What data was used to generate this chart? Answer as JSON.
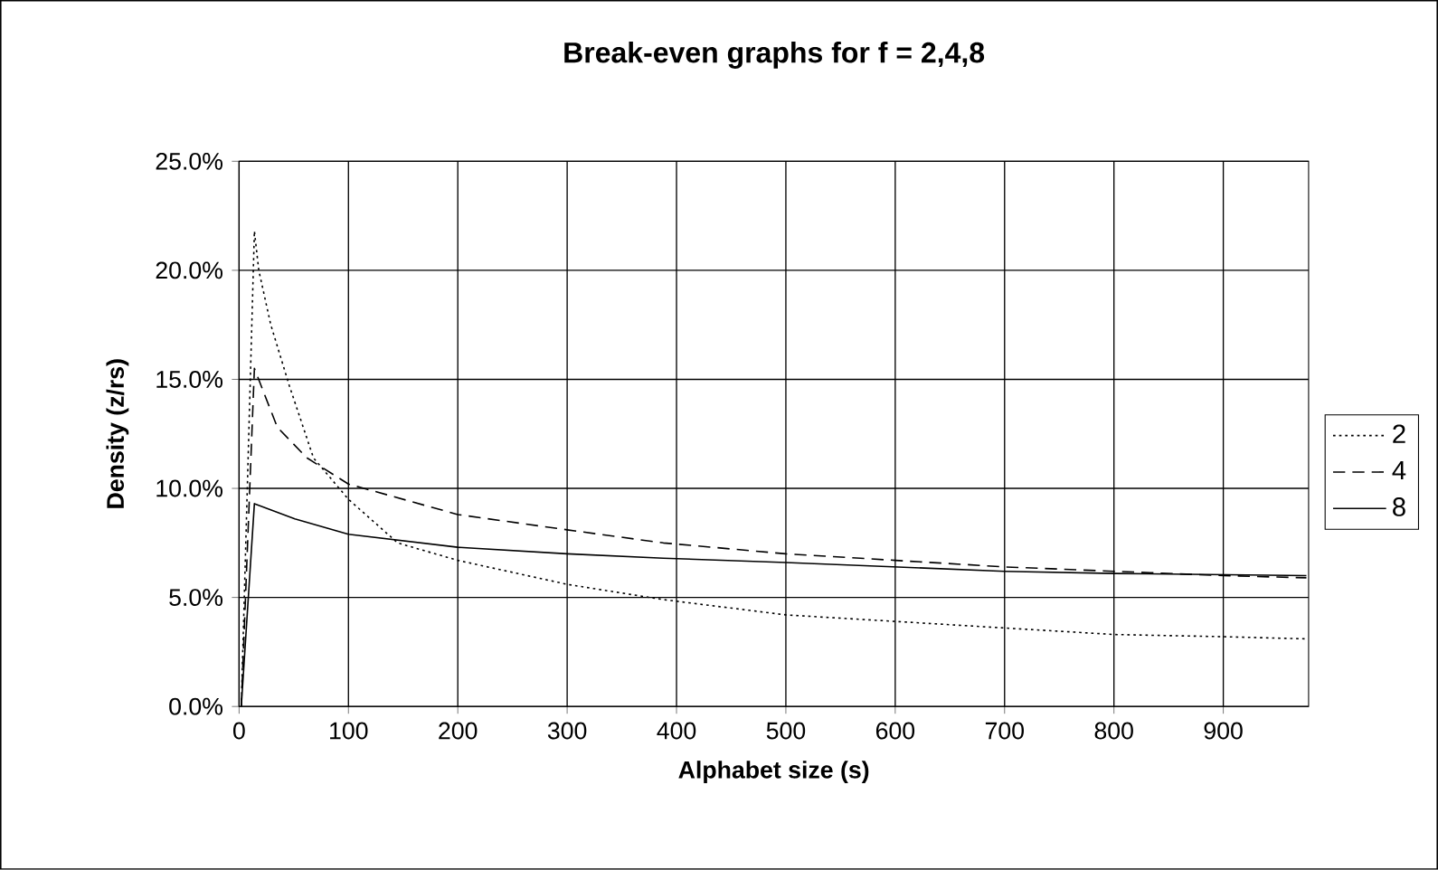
{
  "chart_data": {
    "type": "line",
    "title": "Break-even graphs for f = 2,4,8",
    "xlabel": "Alphabet size (s)",
    "ylabel": "Density (z/rs)",
    "xlim": [
      0,
      978
    ],
    "xticks": [
      0,
      100,
      200,
      300,
      400,
      500,
      600,
      700,
      800,
      900
    ],
    "ylim": [
      0,
      25
    ],
    "yticks": [
      {
        "value": 0,
        "label": "0.0%"
      },
      {
        "value": 5,
        "label": "5.0%"
      },
      {
        "value": 10,
        "label": "10.0%"
      },
      {
        "value": 15,
        "label": "15.0%"
      },
      {
        "value": 20,
        "label": "20.0%"
      },
      {
        "value": 25,
        "label": "25.0%"
      }
    ],
    "grid": true,
    "legend": "right",
    "series": [
      {
        "name": "2",
        "color": "#000000",
        "line_style": "dotted",
        "x": [
          2,
          14,
          18,
          29,
          46,
          68,
          100,
          145,
          200,
          300,
          388,
          500,
          600,
          700,
          800,
          900,
          976
        ],
        "values": [
          0,
          21.8,
          20.0,
          17.5,
          14.7,
          11.4,
          9.5,
          7.5,
          6.7,
          5.6,
          4.9,
          4.2,
          3.9,
          3.6,
          3.3,
          3.2,
          3.1
        ]
      },
      {
        "name": "4",
        "color": "#000000",
        "line_style": "dashed",
        "x": [
          2,
          14,
          35,
          62,
          100,
          200,
          300,
          388,
          500,
          600,
          700,
          800,
          900,
          976
        ],
        "values": [
          0,
          15.5,
          12.8,
          11.4,
          10.2,
          8.8,
          8.1,
          7.5,
          7.0,
          6.7,
          6.4,
          6.2,
          6.0,
          5.9
        ]
      },
      {
        "name": "8",
        "color": "#000000",
        "line_style": "solid",
        "x": [
          2,
          14,
          51,
          100,
          200,
          300,
          388,
          500,
          600,
          700,
          800,
          976
        ],
        "values": [
          0,
          9.3,
          8.6,
          7.9,
          7.3,
          7.0,
          6.8,
          6.6,
          6.4,
          6.2,
          6.1,
          6.0
        ]
      }
    ]
  }
}
